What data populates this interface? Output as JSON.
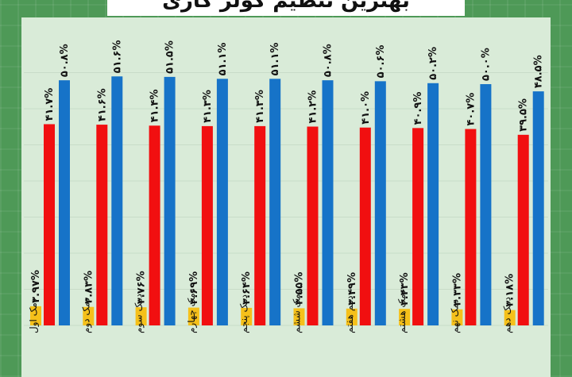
{
  "title": "بهترین تنظیم کولر گازی",
  "chart_data": {
    "type": "bar",
    "categories": [
      "دمک اول",
      "دمک دوم",
      "دمک سوم",
      "دمک چهارم",
      "دمک پنجم",
      "دمک ششم",
      "دمم هفتم",
      "دمک هشتم",
      "دمک نهم",
      "دمک دهم"
    ],
    "series": [
      {
        "color": "#f5c01a",
        "values": [
          3.97,
          3.83,
          3.76,
          3.69,
          3.64,
          3.55,
          3.49,
          3.43,
          3.33,
          3.18
        ],
        "labels": [
          "۳.۹۷%",
          "۳.۸۳%",
          "۳.۷۶%",
          "۳.۶۹%",
          "۳.۶۴%",
          "۳.۵۵%",
          "۳.۴۹%",
          "۳.۴۳%",
          "۳.۳۳%",
          "۳.۱۸%"
        ]
      },
      {
        "color": "#f10f10",
        "values": [
          41.7,
          41.6,
          41.4,
          41.3,
          41.3,
          41.2,
          41.0,
          40.9,
          40.7,
          39.5
        ],
        "labels": [
          "۴۱.۷%",
          "۴۱.۶%",
          "۴۱.۴%",
          "۴۱.۳%",
          "۴۱.۳%",
          "۴۱.۲%",
          "۴۱.۰%",
          "۴۰.۹%",
          "۴۰.۷%",
          "۳۹.۵%"
        ]
      },
      {
        "color": "#1673c8",
        "values": [
          50.8,
          51.6,
          51.5,
          51.1,
          51.1,
          50.8,
          50.6,
          50.2,
          50.0,
          48.5
        ],
        "labels": [
          "۵۰.۸%",
          "۵۱.۶%",
          "۵۱.۵%",
          "۵۱.۱%",
          "۵۱.۱%",
          "۵۰.۸%",
          "۵۰.۶%",
          "۵۰.۲%",
          "۵۰.۰%",
          "۴۸.۵%"
        ]
      }
    ],
    "grid": true,
    "legend": "none"
  }
}
